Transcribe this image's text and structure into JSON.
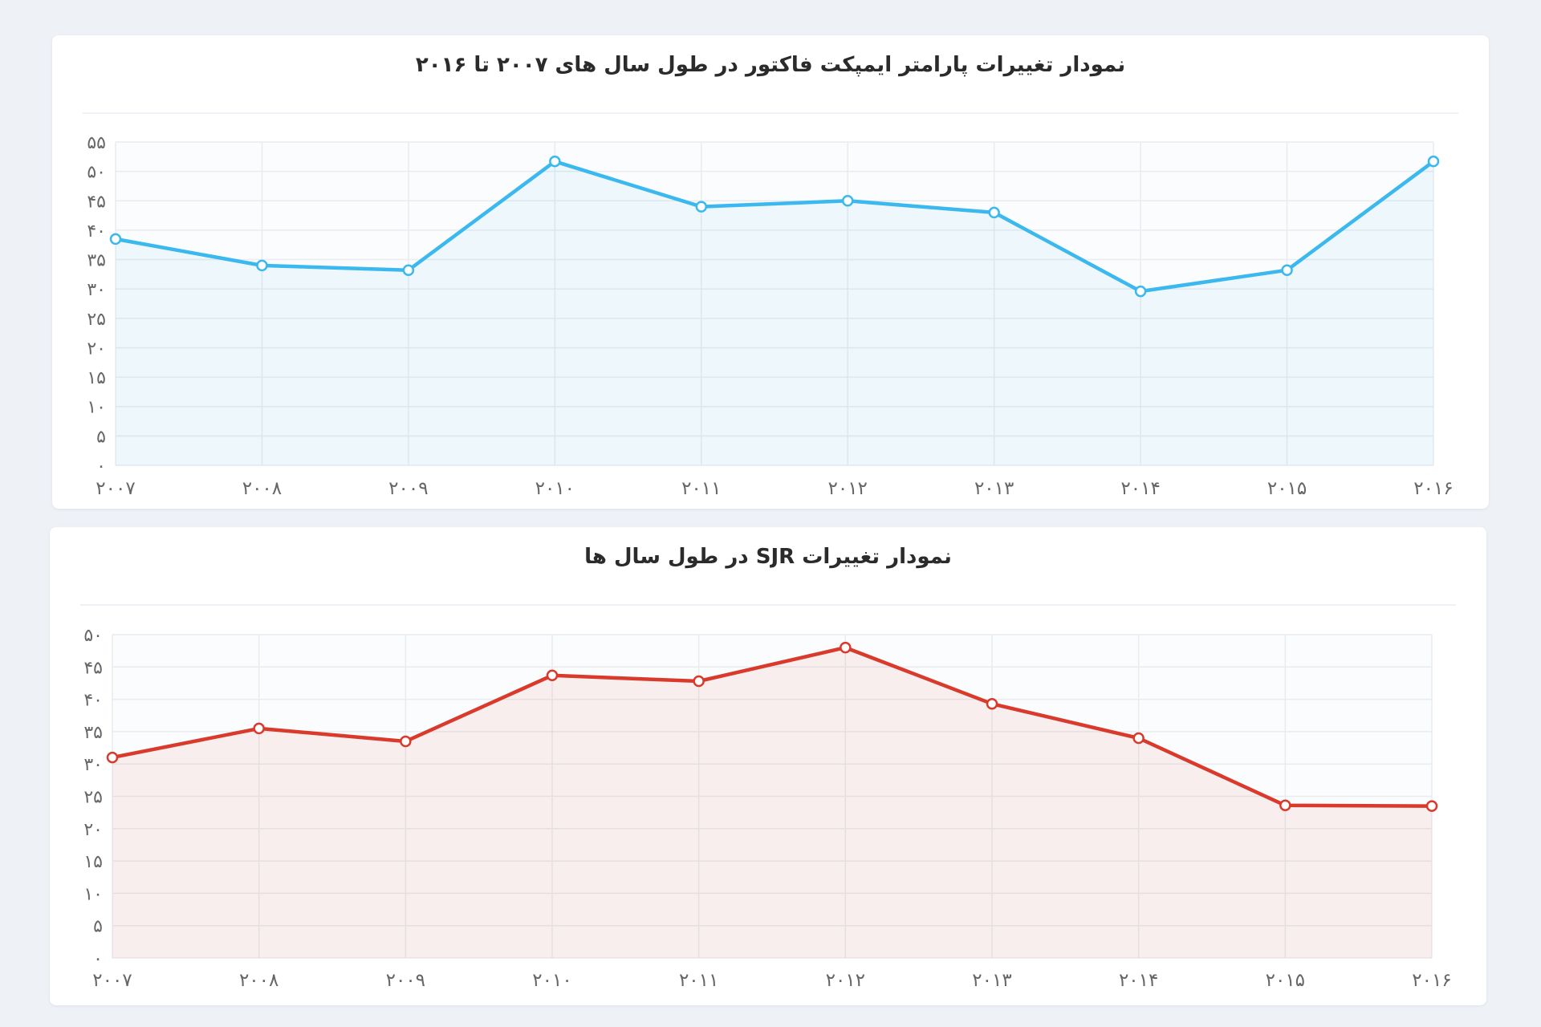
{
  "colors": {
    "background": "#eef2f7",
    "card": "#ffffff",
    "grid": "#e8ebef",
    "series_if": "#3bb8ee",
    "series_sjr": "#d93a2b"
  },
  "chart_data": [
    {
      "type": "area",
      "title": "نمودار تغییرات پارامتر ایمپکت فاکتور در طول سال های ۲۰۰۷ تا ۲۰۱۶",
      "xlabel": "",
      "ylabel": "",
      "categories": [
        "۲۰۰۷",
        "۲۰۰۸",
        "۲۰۰۹",
        "۲۰۱۰",
        "۲۰۱۱",
        "۲۰۱۲",
        "۲۰۱۳",
        "۲۰۱۴",
        "۲۰۱۵",
        "۲۰۱۶"
      ],
      "y_ticks": [
        "۰",
        "۵",
        "۱۰",
        "۱۵",
        "۲۰",
        "۲۵",
        "۳۰",
        "۳۵",
        "۴۰",
        "۴۵",
        "۵۰",
        "۵۵"
      ],
      "ylim": [
        0,
        55
      ],
      "grid": true,
      "legend": "none",
      "series": [
        {
          "values": [
            38.5,
            34,
            33.2,
            51.7,
            44,
            45,
            43,
            29.6,
            33.2,
            51.7
          ],
          "color": "#3bb8ee"
        }
      ]
    },
    {
      "type": "area",
      "title": "نمودار تغییرات SJR در طول سال ها",
      "xlabel": "",
      "ylabel": "",
      "categories": [
        "۲۰۰۷",
        "۲۰۰۸",
        "۲۰۰۹",
        "۲۰۱۰",
        "۲۰۱۱",
        "۲۰۱۲",
        "۲۰۱۳",
        "۲۰۱۴",
        "۲۰۱۵",
        "۲۰۱۶"
      ],
      "y_ticks": [
        "۰",
        "۵",
        "۱۰",
        "۱۵",
        "۲۰",
        "۲۵",
        "۳۰",
        "۳۵",
        "۴۰",
        "۴۵",
        "۵۰"
      ],
      "ylim": [
        0,
        50
      ],
      "grid": true,
      "legend": "none",
      "series": [
        {
          "values": [
            31,
            35.5,
            33.5,
            43.7,
            42.8,
            48,
            39.3,
            34,
            23.6,
            23.5
          ],
          "color": "#d93a2b"
        }
      ]
    }
  ]
}
